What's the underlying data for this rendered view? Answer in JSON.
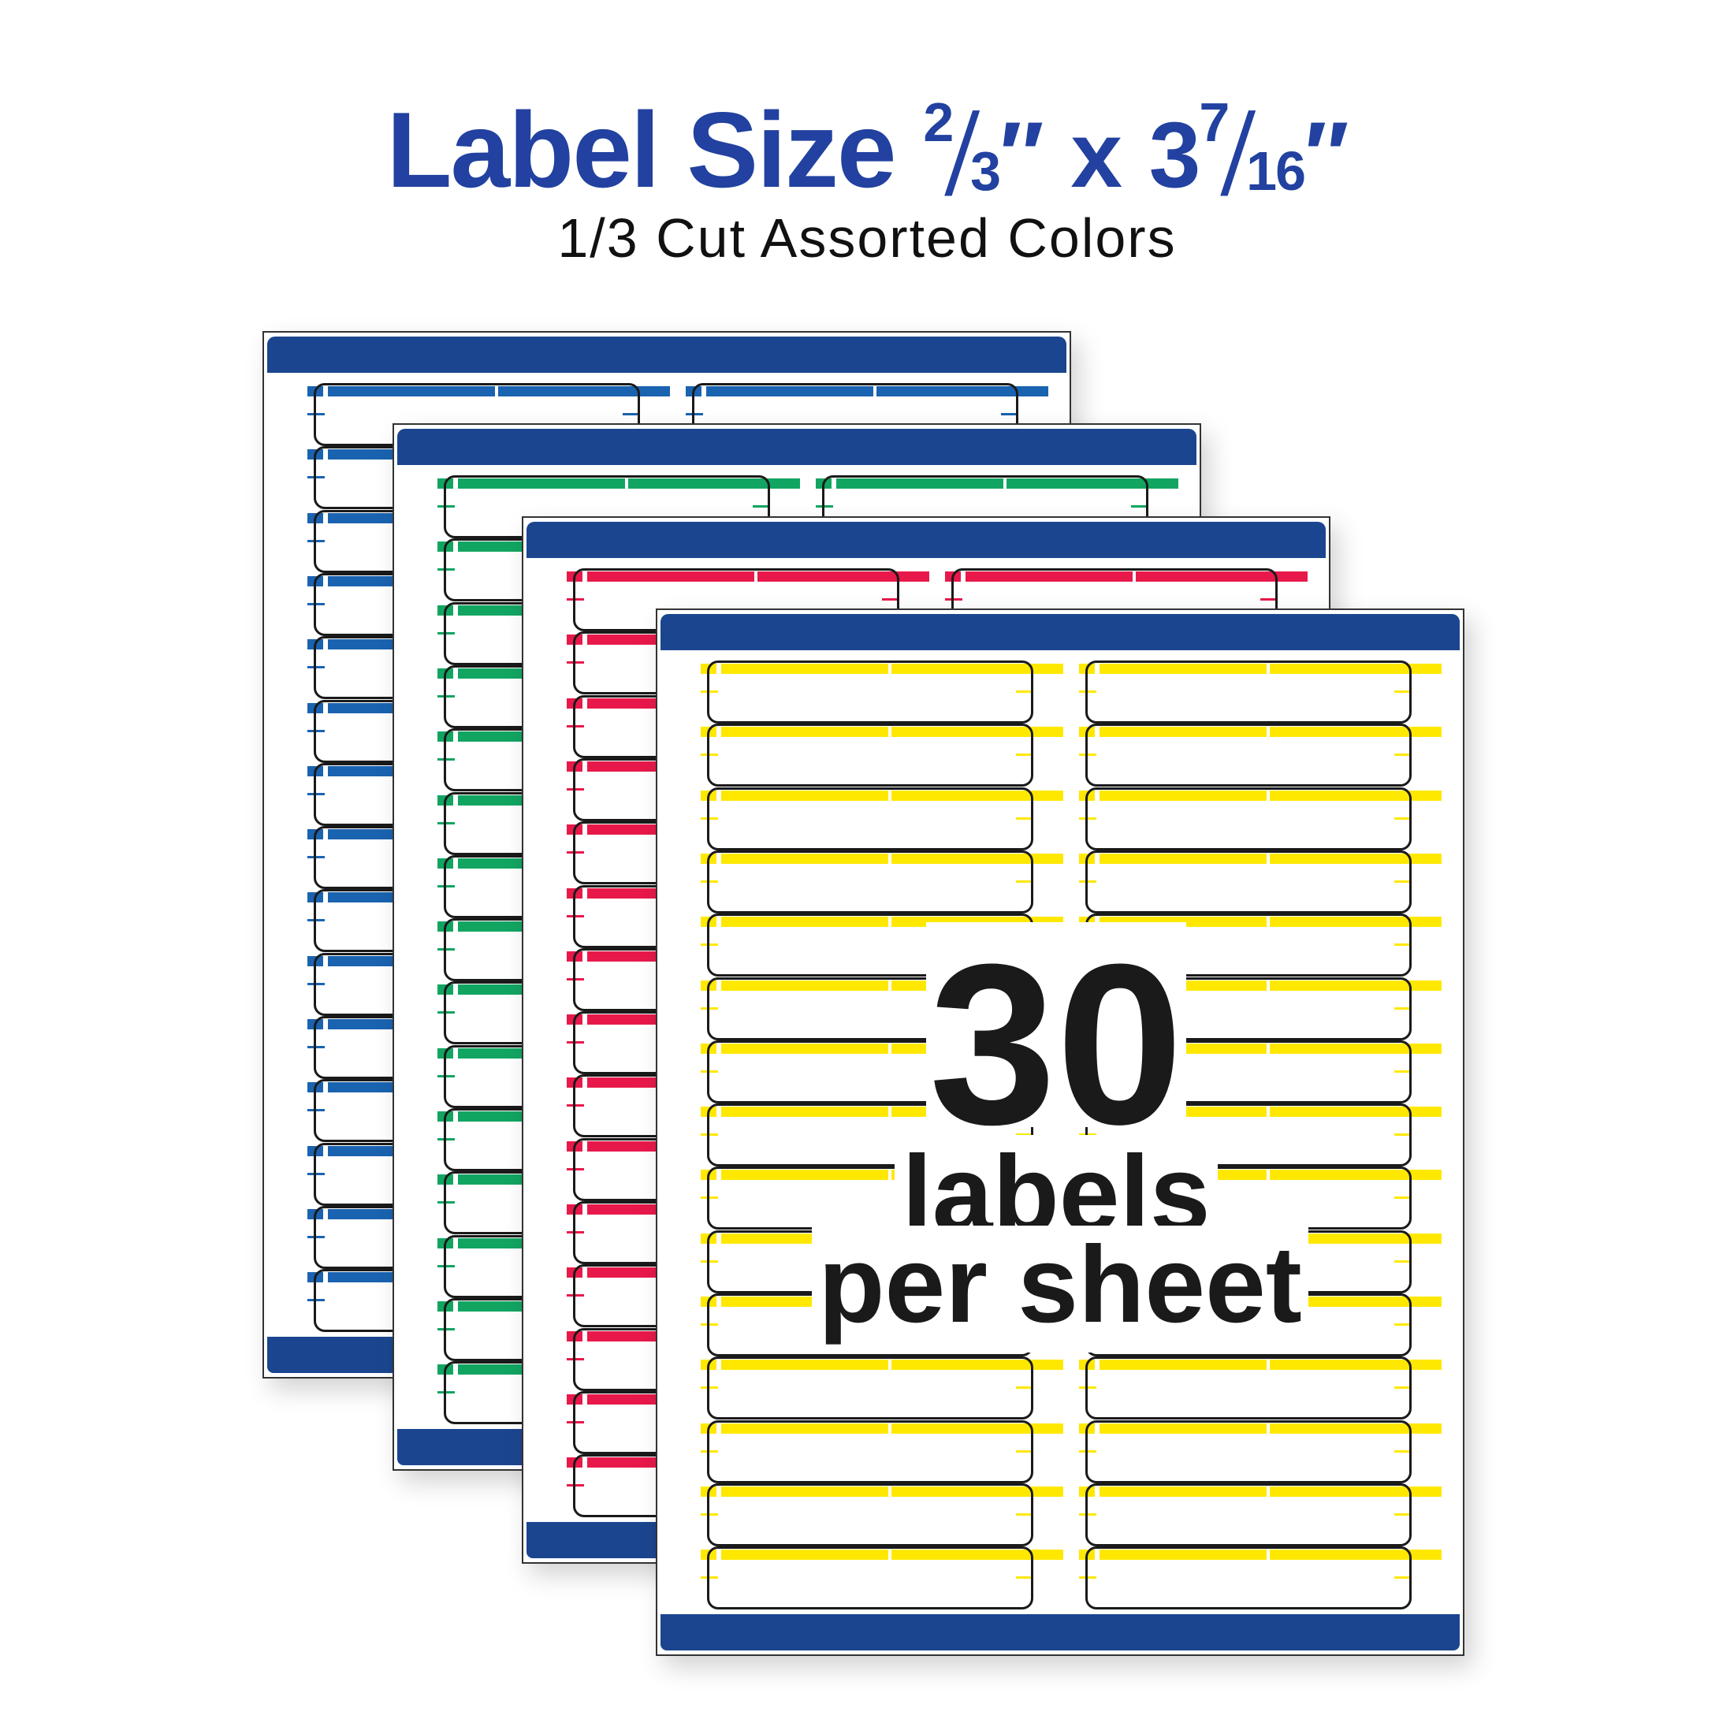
{
  "header": {
    "title_main": "Label Size",
    "size_a_num": "2",
    "size_a_den": "3",
    "size_sep": "x",
    "size_b_whole": "3",
    "size_b_num": "7",
    "size_b_den": "16",
    "slash": "/",
    "inch": "″",
    "subtitle": "1/3 Cut Assorted Colors"
  },
  "callout": {
    "count": "30",
    "line1": "labels",
    "line2": "per sheet"
  },
  "colors": {
    "title": "#2241a0",
    "sheet_bar": "#1b468f"
  },
  "sheets": [
    {
      "color": "#1a63b0"
    },
    {
      "color": "#12a562"
    },
    {
      "color": "#e8194a"
    },
    {
      "color": "#ffe800"
    }
  ],
  "labels_per_column": 15,
  "columns": 2
}
